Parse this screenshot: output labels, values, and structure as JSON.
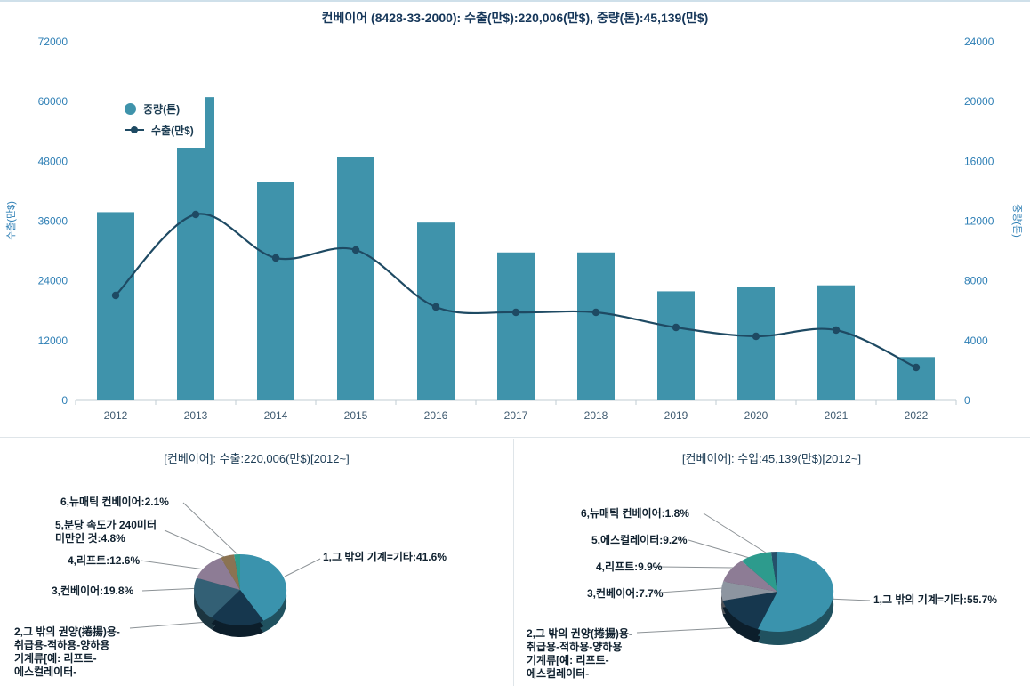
{
  "header": {
    "title": "컨베이어 (8428-33-2000): 수출(만$):220,006(만$), 중량(톤):45,139(만$)"
  },
  "colors": {
    "bar": "#3f93ab",
    "line": "#1e4a63",
    "axis_tick_label": "#2e7fb5",
    "axis_year_label": "#3f5a70",
    "axis_line": "#c2ccd3",
    "callout_line": "#8c9296"
  },
  "chart_data": [
    {
      "type": "bar",
      "subtype": "bar-line-combo",
      "title": "컨베이어 (8428-33-2000): 수출(만$):220,006(만$), 중량(톤):45,139(만$)",
      "categories": [
        "2012",
        "2013",
        "2014",
        "2015",
        "2016",
        "2017",
        "2018",
        "2019",
        "2020",
        "2021",
        "2022"
      ],
      "series": [
        {
          "name": "중량(톤)",
          "type": "bar",
          "axis": "right",
          "color": "#3f93ab",
          "values": [
            12600,
            20300,
            14600,
            16300,
            11900,
            9900,
            9900,
            7300,
            7600,
            7700,
            2900
          ]
        },
        {
          "name": "수출(만$)",
          "type": "line",
          "axis": "left",
          "color": "#1e4a63",
          "values": [
            21000,
            37300,
            28600,
            30200,
            18800,
            17700,
            17700,
            14700,
            12900,
            14100,
            6600
          ]
        }
      ],
      "left_axis": {
        "label": "수출(만$)",
        "min": 0,
        "max": 72000,
        "ticks": [
          0,
          12000,
          24000,
          36000,
          48000,
          60000,
          72000
        ]
      },
      "right_axis": {
        "label": "중량(톤)",
        "min": 0,
        "max": 24000,
        "ticks": [
          0,
          4000,
          8000,
          12000,
          16000,
          20000,
          24000
        ]
      },
      "legend": [
        "중량(톤)",
        "수출(만$)"
      ],
      "legend_position": "top-left-inside",
      "grid": false
    },
    {
      "type": "pie",
      "title": "[컨베이어]: 수출:220,006(만$)[2012~]",
      "slices": [
        {
          "label": "1,그 밖의 기계=기타:41.6%",
          "value": 41.6,
          "color": "#3a93ad"
        },
        {
          "label": "2,그 밖의 권양(捲揚)용-\n취급용-적하용-양하용\n기계류[예: 리프트-\n에스컬레이터-",
          "value": 19.1,
          "color": "#16374e"
        },
        {
          "label": "3,컨베이어:19.8%",
          "value": 19.8,
          "color": "#336075"
        },
        {
          "label": "4,리프트:12.6%",
          "value": 12.6,
          "color": "#8d7c95"
        },
        {
          "label": "5,분당 속도가 240미터\n미만인 것:4.8%",
          "value": 4.8,
          "color": "#8b7352"
        },
        {
          "label": "6,뉴매틱 컨베이어:2.1%",
          "value": 2.1,
          "color": "#2d9b8d"
        }
      ]
    },
    {
      "type": "pie",
      "title": "[컨베이어]: 수입:45,139(만$)[2012~]",
      "slices": [
        {
          "label": "1,그 밖의 기계=기타:55.7%",
          "value": 55.7,
          "color": "#3a93ad"
        },
        {
          "label": "2,그 밖의 권양(捲揚)용-\n취급용-적하용-양하용\n기계류[예: 리프트-\n에스컬레이터-",
          "value": 15.7,
          "color": "#16374e"
        },
        {
          "label": "3,컨베이어:7.7%",
          "value": 7.7,
          "color": "#8d95a0"
        },
        {
          "label": "4,리프트:9.9%",
          "value": 9.9,
          "color": "#8d7c95"
        },
        {
          "label": "5,에스컬레이터:9.2%",
          "value": 9.2,
          "color": "#2d9b8d"
        },
        {
          "label": "6,뉴매틱 컨베이어:1.8%",
          "value": 1.8,
          "color": "#25506b"
        }
      ]
    }
  ]
}
